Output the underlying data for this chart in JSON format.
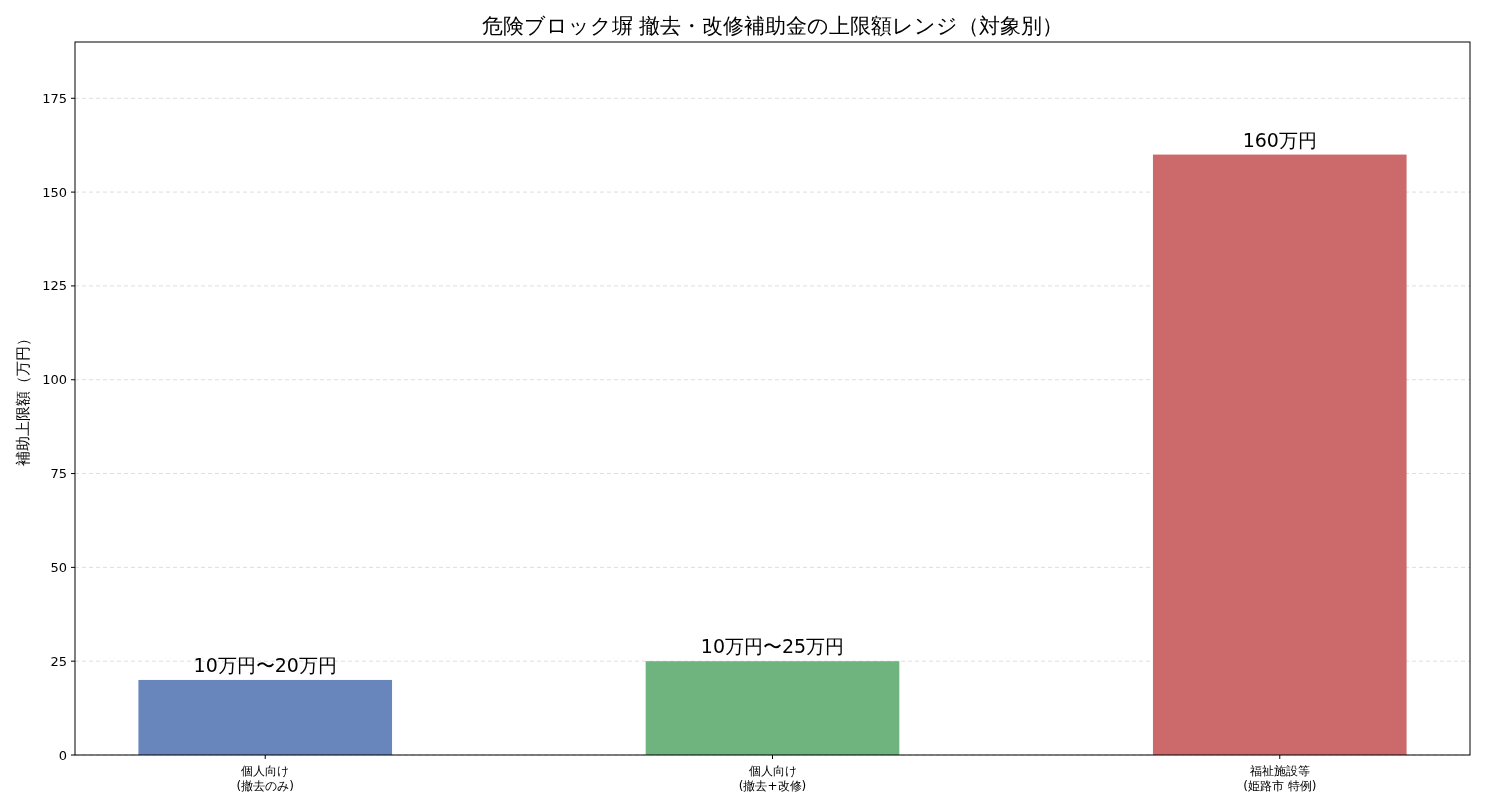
{
  "chart_data": {
    "type": "bar",
    "title": "危険ブロック塀 撤去・改修補助金の上限額レンジ（対象別）",
    "ylabel": "補助上限額（万円）",
    "categories": [
      "個人向け\n(撤去のみ)",
      "個人向け\n(撤去+改修)",
      "福祉施設等\n(姫路市 特例)"
    ],
    "values": [
      20,
      25,
      160
    ],
    "colors": [
      "#6886bb",
      "#6fb47e",
      "#cc696b"
    ],
    "value_labels": [
      "10万円〜20万円",
      "10万円〜25万円",
      "160万円"
    ],
    "ylim": [
      0,
      190
    ],
    "yticks": [
      0,
      25,
      50,
      75,
      100,
      125,
      150,
      175
    ],
    "grid": "y"
  }
}
